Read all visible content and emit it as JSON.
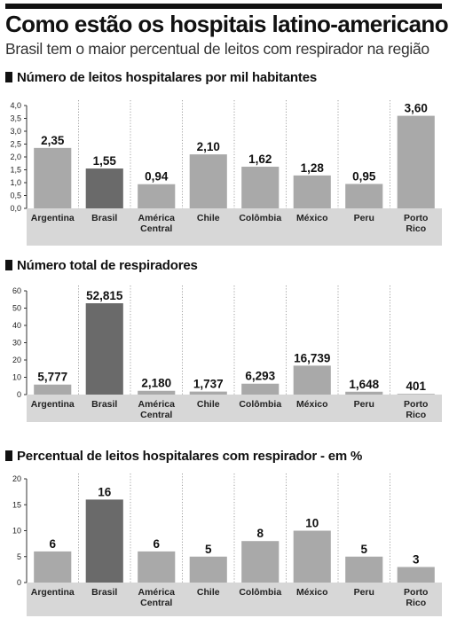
{
  "header": {
    "title": "Como estão os hospitais latino-americanos",
    "subtitle": "Brasil tem o maior percentual de leitos com respirador na região"
  },
  "colors": {
    "bar": "#a9a9a9",
    "highlight_bar": "#6a6a6a",
    "category_band": "#d7d7d7"
  },
  "chart_data": [
    {
      "type": "bar",
      "title": "Número de leitos hospitalares por mil habitantes",
      "categories": [
        "Argentina",
        "Brasil",
        "América Central",
        "Chile",
        "Colômbia",
        "México",
        "Peru",
        "Porto Rico"
      ],
      "values": [
        2.35,
        1.55,
        0.94,
        2.1,
        1.62,
        1.28,
        0.95,
        3.6
      ],
      "value_labels": [
        "2,35",
        "1,55",
        "0,94",
        "2,10",
        "1,62",
        "1,28",
        "0,95",
        "3,60"
      ],
      "ylim": [
        0,
        4
      ],
      "yticks": [
        0,
        0.5,
        1,
        1.5,
        2,
        2.5,
        3,
        3.5,
        4
      ],
      "ytick_labels": [
        "0,0",
        "0,5",
        "1,0",
        "1,5",
        "2,0",
        "2,5",
        "3,0",
        "3,5",
        "4,0"
      ],
      "highlight": "Brasil",
      "grid": "vertical dotted separators"
    },
    {
      "type": "bar",
      "title": "Número total de respiradores",
      "categories": [
        "Argentina",
        "Brasil",
        "América Central",
        "Chile",
        "Colômbia",
        "México",
        "Peru",
        "Porto Rico"
      ],
      "values": [
        5.777,
        52.815,
        2.18,
        1.737,
        6.293,
        16.739,
        1.648,
        0.401
      ],
      "value_labels": [
        "5,777",
        "52,815",
        "2,180",
        "1,737",
        "6,293",
        "16,739",
        "1,648",
        "401"
      ],
      "ylim": [
        0,
        60
      ],
      "yticks": [
        0,
        10,
        20,
        30,
        40,
        50,
        60
      ],
      "ytick_labels": [
        "0",
        "10",
        "20",
        "30",
        "40",
        "50",
        "60"
      ],
      "highlight": "Brasil",
      "grid": "vertical dotted separators"
    },
    {
      "type": "bar",
      "title": "Percentual de leitos hospitalares com respirador - em %",
      "categories": [
        "Argentina",
        "Brasil",
        "América Central",
        "Chile",
        "Colômbia",
        "México",
        "Peru",
        "Porto Rico"
      ],
      "values": [
        6,
        16,
        6,
        5,
        8,
        10,
        5,
        3
      ],
      "value_labels": [
        "6",
        "16",
        "6",
        "5",
        "8",
        "10",
        "5",
        "3"
      ],
      "ylim": [
        0,
        20
      ],
      "yticks": [
        0,
        5,
        10,
        15,
        20
      ],
      "ytick_labels": [
        "0",
        "5",
        "10",
        "15",
        "20"
      ],
      "highlight": "Brasil",
      "grid": "vertical dotted separators"
    }
  ]
}
